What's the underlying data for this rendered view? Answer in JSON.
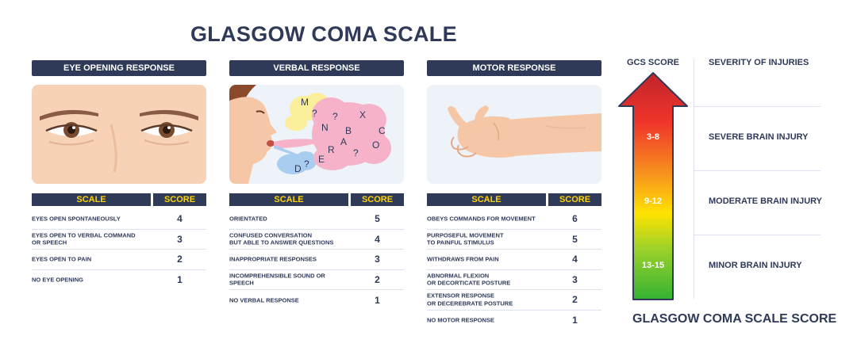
{
  "title": "GLASGOW COMA SCALE",
  "panels": [
    {
      "header": "EYE OPENING RESPONSE",
      "scale_label": "SCALE",
      "score_label": "SCORE",
      "rows": [
        {
          "label": "EYES OPEN SPONTANEOUSLY",
          "score": "4"
        },
        {
          "label": "EYES OPEN TO VERBAL COMMAND\nOR SPEECH",
          "score": "3"
        },
        {
          "label": "EYES OPEN TO PAIN",
          "score": "2"
        },
        {
          "label": "NO EYE OPENING",
          "score": "1"
        }
      ]
    },
    {
      "header": "VERBAL RESPONSE",
      "scale_label": "SCALE",
      "score_label": "SCORE",
      "rows": [
        {
          "label": "ORIENTATED",
          "score": "5"
        },
        {
          "label": "CONFUSED CONVERSATION\nBUT ABLE TO ANSWER QUESTIONS",
          "score": "4"
        },
        {
          "label": "INAPPROPRIATE RESPONSES",
          "score": "3"
        },
        {
          "label": "INCOMPREHENSIBLE SOUND OR\nSPEECH",
          "score": "2"
        },
        {
          "label": "NO VERBAL RESPONSE",
          "score": "1"
        }
      ]
    },
    {
      "header": "MOTOR RESPONSE",
      "scale_label": "SCALE",
      "score_label": "SCORE",
      "rows": [
        {
          "label": "OBEYS COMMANDS FOR MOVEMENT",
          "score": "6"
        },
        {
          "label": "PURPOSEFUL MOVEMENT\nTO PAINFUL STIMULUS",
          "score": "5"
        },
        {
          "label": "WITHDRAWS FROM PAIN",
          "score": "4"
        },
        {
          "label": "ABNORMAL FLEXION\nOR DECORTICATE POSTURE",
          "score": "3"
        },
        {
          "label": "EXTENSOR RESPONSE\nOR DECEREBRATE POSTURE",
          "score": "2"
        },
        {
          "label": "NO MOTOR RESPONSE",
          "score": "1"
        }
      ]
    }
  ],
  "bubble_letters": [
    "M",
    "?",
    "N",
    "?",
    "X",
    "B",
    "A",
    "R",
    "E",
    "?",
    "O",
    "C",
    "?",
    "D"
  ],
  "gcs": {
    "score_header": "GCS SCORE",
    "severity_header": "SEVERITY OF INJURIES",
    "levels": [
      {
        "range": "3-8",
        "severity": "SEVERE BRAIN INJURY"
      },
      {
        "range": "9-12",
        "severity": "MODERATE BRAIN INJURY"
      },
      {
        "range": "13-15",
        "severity": "MINOR BRAIN INJURY"
      }
    ],
    "footer": "GLASGOW COMA SCALE SCORE"
  },
  "colors": {
    "navy": "#2e3a58",
    "header_text_yellow": "#ffd400",
    "arrow_top": "#c0242b",
    "arrow_red": "#f0352b",
    "arrow_orange": "#f7941d",
    "arrow_yellow": "#ffe200",
    "arrow_green": "#34b233"
  }
}
